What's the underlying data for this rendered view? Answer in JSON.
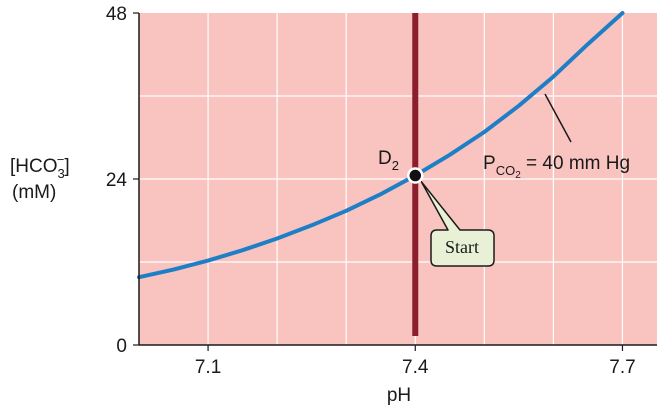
{
  "chart_data": {
    "type": "line",
    "xlabel": "pH",
    "ylabel_main": "[HCO",
    "ylabel_sub": "3",
    "ylabel_sup": "−",
    "ylabel_close": "]",
    "ylabel_unit": "(mM)",
    "xlim": [
      7.0,
      7.75
    ],
    "ylim": [
      0,
      48
    ],
    "x_ticks": [
      7.1,
      7.4,
      7.7
    ],
    "x_tick_labels": [
      "7.1",
      "7.4",
      "7.7"
    ],
    "y_ticks": [
      0,
      24,
      48
    ],
    "y_tick_labels": [
      "0",
      "24",
      "48"
    ],
    "grid": true,
    "background_color": "#f9c3bf",
    "grid_color": "#ffffff",
    "series": [
      {
        "curve_label_main": "P",
        "curve_label_sub": "CO",
        "curve_label_subsub": "2",
        "curve_label_rest": " = 40 mm Hg",
        "color": "#1f7fc6",
        "x": [
          7.0,
          7.05,
          7.1,
          7.15,
          7.2,
          7.25,
          7.3,
          7.35,
          7.4,
          7.45,
          7.5,
          7.55,
          7.6,
          7.65,
          7.7
        ],
        "y": [
          9.8,
          10.9,
          12.2,
          13.7,
          15.4,
          17.3,
          19.4,
          21.8,
          24.5,
          27.5,
          30.8,
          34.6,
          38.8,
          43.5,
          48.0
        ]
      }
    ],
    "vertical_line": {
      "x": 7.4,
      "color": "#8b1d2c"
    },
    "point": {
      "label_main": "D",
      "label_sub": "2",
      "x": 7.4,
      "y": 24.5
    },
    "callout": {
      "text": "Start",
      "fill": "#e8f1d6"
    }
  }
}
